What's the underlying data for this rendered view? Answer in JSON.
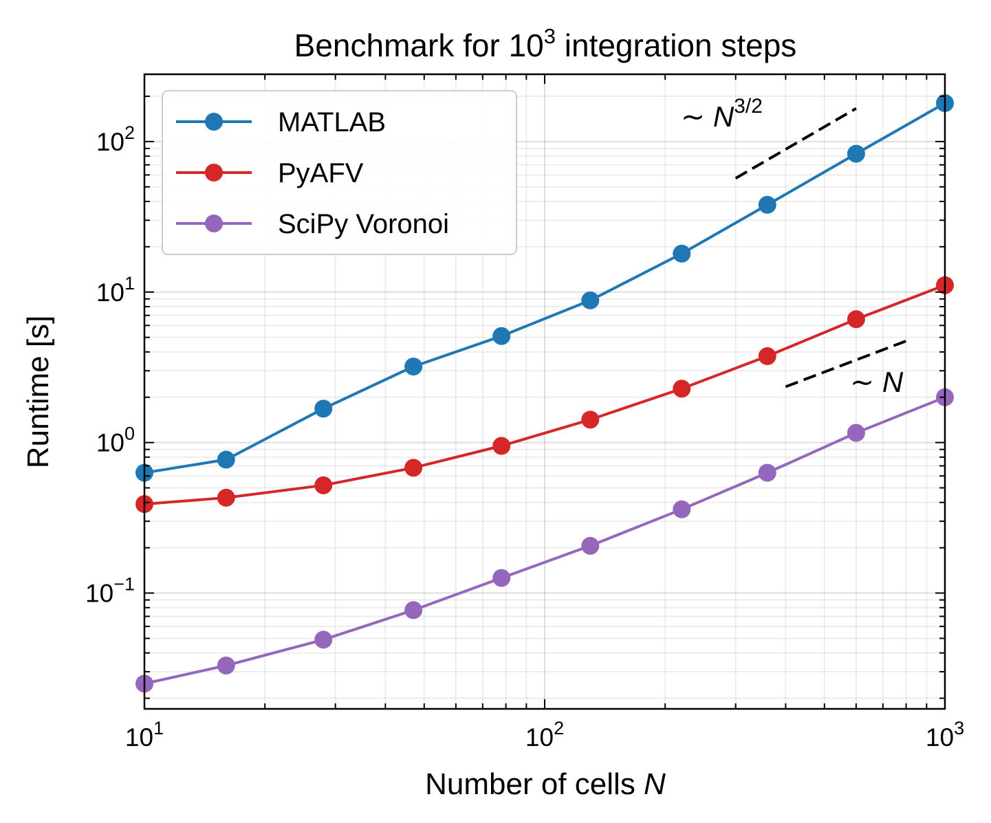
{
  "chart_data": {
    "type": "line",
    "title": {
      "prefix": "Benchmark for 10",
      "sup": "3",
      "suffix": " integration steps"
    },
    "xlabel": {
      "text": "Number of cells ",
      "italic": "N"
    },
    "ylabel": "Runtime [s]",
    "xscale": "log",
    "yscale": "log",
    "xlim": [
      10,
      1000
    ],
    "ylim": [
      0.017,
      280
    ],
    "grid": true,
    "legend_position": "top-left",
    "x_ticks": [
      {
        "base": "10",
        "exp": "1",
        "value": 10
      },
      {
        "base": "10",
        "exp": "2",
        "value": 100
      },
      {
        "base": "10",
        "exp": "3",
        "value": 1000
      }
    ],
    "y_ticks": [
      {
        "base": "10",
        "exp": "−1",
        "value": 0.1
      },
      {
        "base": "10",
        "exp": "0",
        "value": 1
      },
      {
        "base": "10",
        "exp": "1",
        "value": 10
      },
      {
        "base": "10",
        "exp": "2",
        "value": 100
      }
    ],
    "x": [
      10,
      16,
      28,
      47,
      78,
      130,
      220,
      360,
      600,
      1000
    ],
    "series": [
      {
        "name": "MATLAB",
        "color": "#1f77b4",
        "values": [
          0.63,
          0.77,
          1.68,
          3.2,
          5.1,
          8.8,
          18,
          38,
          83,
          180
        ]
      },
      {
        "name": "PyAFV",
        "color": "#d62728",
        "values": [
          0.39,
          0.43,
          0.52,
          0.68,
          0.95,
          1.42,
          2.28,
          3.75,
          6.6,
          11.1
        ]
      },
      {
        "name": "SciPy Voronoi",
        "color": "#9467bd",
        "values": [
          0.025,
          0.033,
          0.049,
          0.077,
          0.126,
          0.206,
          0.36,
          0.63,
          1.16,
          2.0
        ]
      }
    ],
    "annotations": [
      {
        "prefix": "∼ ",
        "italic": "N",
        "sup": "3/2"
      },
      {
        "prefix": "∼ ",
        "italic": "N",
        "sup": ""
      }
    ],
    "guide_lines": [
      {
        "x": [
          300,
          600
        ],
        "y": [
          57,
          166
        ]
      },
      {
        "x": [
          400,
          820
        ],
        "y": [
          2.35,
          4.85
        ]
      }
    ]
  }
}
